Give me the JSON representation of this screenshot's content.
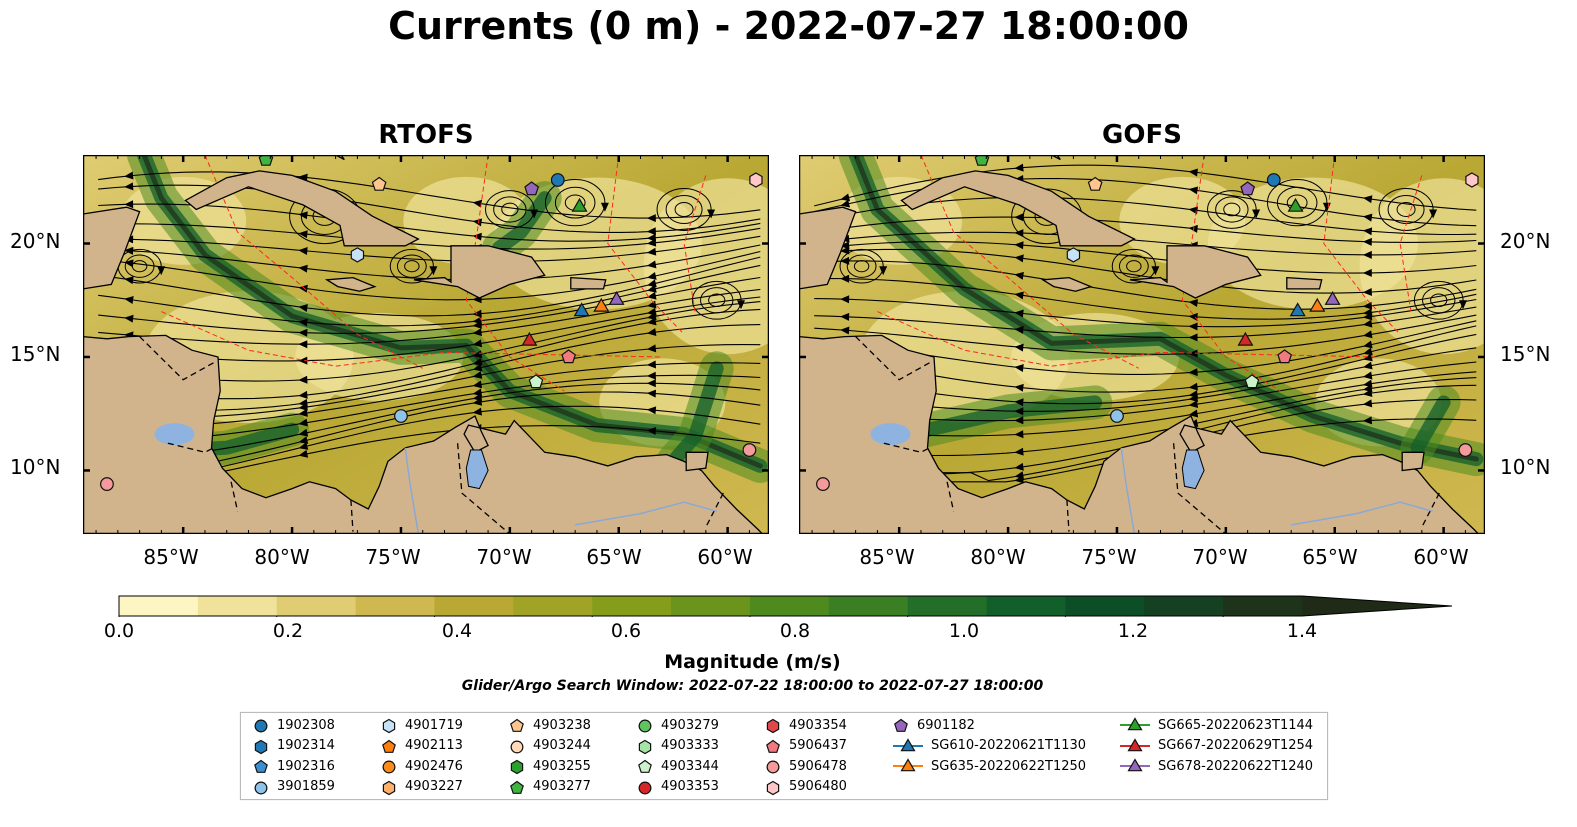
{
  "title": "Currents (0 m) - 2022-07-27 18:00:00",
  "panels": [
    {
      "title": "RTOFS",
      "accent_field": "#2e7d1e"
    },
    {
      "title": "GOFS",
      "accent_field": "#2e7d1e"
    }
  ],
  "axes": {
    "x_ticks": [
      "85°W",
      "80°W",
      "75°W",
      "70°W",
      "65°W",
      "60°W"
    ],
    "y_ticks": [
      "20°N",
      "15°N",
      "10°N"
    ]
  },
  "colorbar": {
    "label": "Magnitude (m/s)",
    "ticks": [
      "0.0",
      "0.2",
      "0.4",
      "0.6",
      "0.8",
      "1.0",
      "1.2",
      "1.4"
    ],
    "range": [
      0,
      1.5
    ],
    "extend": "max",
    "colors": [
      "#fdf6c3",
      "#f0e29a",
      "#e0cc72",
      "#d0b850",
      "#b9a834",
      "#a1a326",
      "#869d1c",
      "#6a941b",
      "#4f8a1f",
      "#3a7f23",
      "#236f2a",
      "#125f2c",
      "#0c4f27",
      "#154021",
      "#1d341b",
      "#1f2a17"
    ]
  },
  "subtitle": "Glider/Argo Search Window: 2022-07-22 18:00:00 to 2022-07-27 18:00:00",
  "colors": {
    "land": "#d2b48c",
    "lake": "#8fb3e0",
    "eez": "#ff2a1a",
    "coast": "#000000"
  },
  "legend": [
    {
      "label": "1902308",
      "marker": "circle",
      "color": "#1f77b4"
    },
    {
      "label": "1902314",
      "marker": "hexagon",
      "color": "#1f77b4"
    },
    {
      "label": "1902316",
      "marker": "pentagon",
      "color": "#3b8fd1"
    },
    {
      "label": "3901859",
      "marker": "circle",
      "color": "#8ec3ea"
    },
    {
      "label": "4901719",
      "marker": "hexagon",
      "color": "#c6e2f7"
    },
    {
      "label": "4902113",
      "marker": "pentagon",
      "color": "#ff7f0e"
    },
    {
      "label": "4902476",
      "marker": "circle",
      "color": "#ff8c1a"
    },
    {
      "label": "4903227",
      "marker": "hexagon",
      "color": "#ffb06a"
    },
    {
      "label": "4903238",
      "marker": "pentagon",
      "color": "#ffc58e"
    },
    {
      "label": "4903244",
      "marker": "circle",
      "color": "#ffd9b8"
    },
    {
      "label": "4903255",
      "marker": "hexagon",
      "color": "#2ca02c"
    },
    {
      "label": "4903277",
      "marker": "pentagon",
      "color": "#41b341"
    },
    {
      "label": "4903279",
      "marker": "circle",
      "color": "#5fc35f"
    },
    {
      "label": "4903333",
      "marker": "hexagon",
      "color": "#a6e3a6"
    },
    {
      "label": "4903344",
      "marker": "pentagon",
      "color": "#ccf2cc"
    },
    {
      "label": "4903353",
      "marker": "circle",
      "color": "#d62728"
    },
    {
      "label": "4903354",
      "marker": "hexagon",
      "color": "#e0474a"
    },
    {
      "label": "5906437",
      "marker": "pentagon",
      "color": "#f07a80"
    },
    {
      "label": "5906478",
      "marker": "circle",
      "color": "#f49a9a"
    },
    {
      "label": "5906480",
      "marker": "hexagon",
      "color": "#ffc7c7"
    },
    {
      "label": "6901182",
      "marker": "pentagon",
      "color": "#9467bd"
    },
    {
      "label": "SG610-20220621T1130",
      "marker": "triangle-line",
      "color": "#1f77b4"
    },
    {
      "label": "SG635-20220622T1250",
      "marker": "triangle-line",
      "color": "#ff7f0e"
    },
    {
      "label": "SG665-20220623T1144",
      "marker": "triangle-line",
      "color": "#2ca02c"
    },
    {
      "label": "SG667-20220629T1254",
      "marker": "triangle-line",
      "color": "#d62728"
    },
    {
      "label": "SG678-20220622T1240",
      "marker": "triangle-line",
      "color": "#9467bd"
    }
  ],
  "observations": [
    {
      "id": "1902308",
      "lon": -67.8,
      "lat": 22.8
    },
    {
      "id": "3901859",
      "lon": -75.0,
      "lat": 12.4
    },
    {
      "id": "4901719",
      "lon": -77.0,
      "lat": 19.5
    },
    {
      "id": "4903238",
      "lon": -76.0,
      "lat": 22.6
    },
    {
      "id": "4903277",
      "lon": -81.2,
      "lat": 23.7
    },
    {
      "id": "4903344",
      "lon": -68.8,
      "lat": 13.9
    },
    {
      "id": "5906437",
      "lon": -67.3,
      "lat": 15.0
    },
    {
      "id": "5906478",
      "lon": -59.0,
      "lat": 10.9
    },
    {
      "id": "5906478",
      "lon": -88.5,
      "lat": 9.4
    },
    {
      "id": "5906480",
      "lon": -58.7,
      "lat": 22.8
    },
    {
      "id": "6901182",
      "lon": -69.0,
      "lat": 22.4
    },
    {
      "id": "SG610-20220621T1130",
      "lon": -66.7,
      "lat": 17.0
    },
    {
      "id": "SG635-20220622T1250",
      "lon": -65.8,
      "lat": 17.2
    },
    {
      "id": "SG665-20220623T1144",
      "lon": -66.8,
      "lat": 21.6
    },
    {
      "id": "SG667-20220629T1254",
      "lon": -69.1,
      "lat": 15.7
    },
    {
      "id": "SG678-20220622T1240",
      "lon": -65.1,
      "lat": 17.5
    }
  ]
}
